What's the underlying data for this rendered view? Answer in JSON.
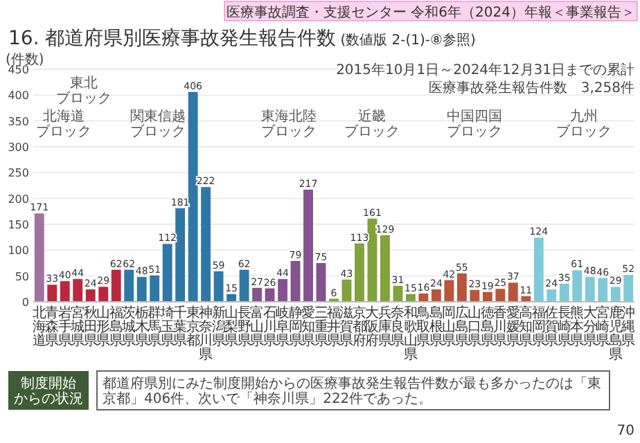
{
  "chart_data": {
    "type": "bar",
    "title": "16. 都道府県別医療事故発生報告件数",
    "subtitle": "(数値版 2-(1)-⑧参照)",
    "ylabel": "(件数)",
    "categories": [
      "北海道",
      "青森県",
      "岩手県",
      "宮城県",
      "秋田県",
      "山形県",
      "福島県",
      "茨城県",
      "栃木県",
      "群馬県",
      "埼玉県",
      "千葉県",
      "東京都",
      "神奈川県",
      "新潟県",
      "山梨県",
      "長野県",
      "富山県",
      "石川県",
      "岐阜県",
      "静岡県",
      "愛知県",
      "三重県",
      "福井県",
      "滋賀県",
      "京都府",
      "大阪府",
      "兵庫県",
      "奈良県",
      "和歌山県",
      "鳥取県",
      "島根県",
      "岡山県",
      "広島県",
      "山口県",
      "徳島県",
      "香川県",
      "愛媛県",
      "高知県",
      "福岡県",
      "佐賀県",
      "長崎県",
      "熊本県",
      "大分県",
      "宮崎県",
      "鹿児島県",
      "沖縄県"
    ],
    "values": [
      171,
      33,
      40,
      44,
      24,
      29,
      62,
      62,
      48,
      51,
      112,
      181,
      406,
      222,
      59,
      15,
      62,
      27,
      26,
      44,
      79,
      217,
      75,
      6,
      43,
      113,
      161,
      129,
      31,
      15,
      16,
      24,
      42,
      55,
      23,
      19,
      25,
      37,
      11,
      124,
      24,
      35,
      61,
      48,
      46,
      29,
      52
    ],
    "colors": [
      "#a0729f",
      "#b9283d",
      "#b9283d",
      "#b9283d",
      "#b9283d",
      "#b9283d",
      "#b9283d",
      "#2f78a5",
      "#2f78a5",
      "#2f78a5",
      "#2f78a5",
      "#2f78a5",
      "#2f78a5",
      "#2f78a5",
      "#2f78a5",
      "#2f78a5",
      "#2f78a5",
      "#83528f",
      "#83528f",
      "#83528f",
      "#83528f",
      "#83528f",
      "#83528f",
      "#82a23c",
      "#82a23c",
      "#82a23c",
      "#82a23c",
      "#82a23c",
      "#82a23c",
      "#82a23c",
      "#b9553b",
      "#b9553b",
      "#b9553b",
      "#b9553b",
      "#b9553b",
      "#b9553b",
      "#b9553b",
      "#b9553b",
      "#b9553b",
      "#80c9d7",
      "#80c9d7",
      "#80c9d7",
      "#80c9d7",
      "#80c9d7",
      "#80c9d7",
      "#80c9d7",
      "#80c9d7"
    ],
    "data_labels": true,
    "ylim": [
      0,
      450
    ],
    "yticks": [
      0,
      50,
      100,
      150,
      200,
      250,
      300,
      350,
      400,
      450
    ],
    "grid": "y",
    "annotations": [
      "北海道ブロック",
      "東北ブロック",
      "関東信越ブロック",
      "東海北陸ブロック",
      "近畿ブロック",
      "中国四国ブロック",
      "九州ブロック",
      "医療事故調査・支援センター 令和6年（2024）年報＜事業報告＞",
      "2015年10月1日～2024年12月31日までの累計",
      "医療事故発生報告件数　3,258件",
      "制度開始からの状況",
      "都道府県別にみた制度開始からの医療事故発生報告件数が最も多かったのは「東京都」406件、次いで「神奈川県」222件であった。",
      "70"
    ]
  }
}
